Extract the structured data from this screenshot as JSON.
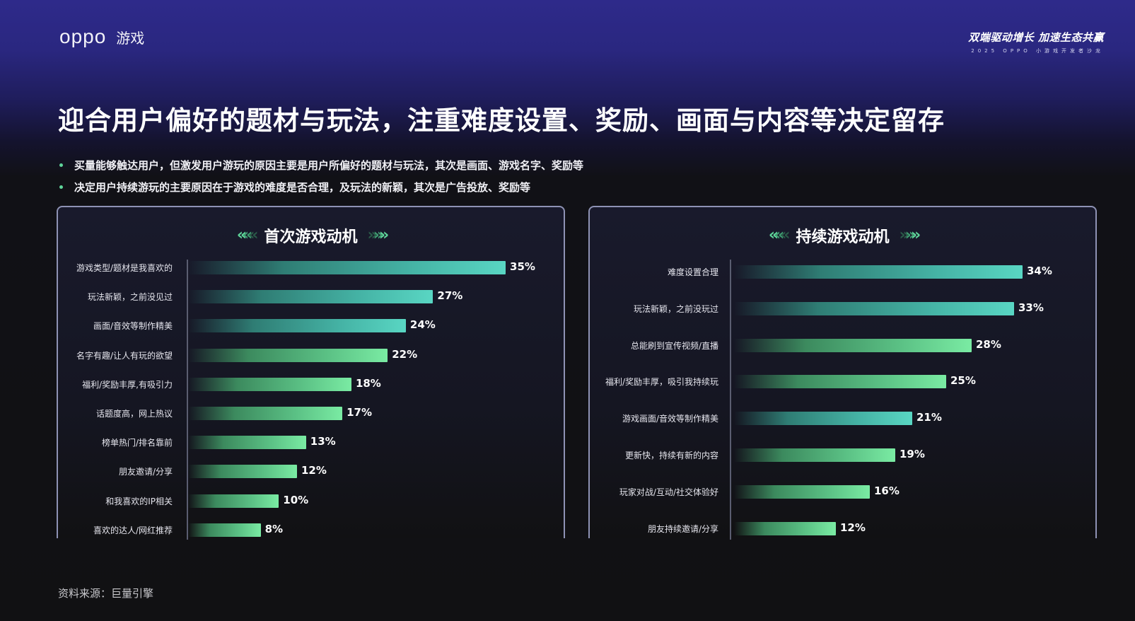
{
  "header": {
    "logo_brand": "oppo",
    "logo_sub": "游戏",
    "event_title": "双端驱动增长 加速生态共赢",
    "event_subtitle": "2025 OPPO 小游戏开发者沙龙"
  },
  "headline": "迎合用户偏好的题材与玩法，注重难度设置、奖励、画面与内容等决定留存",
  "bullets": [
    "买量能够触达用户，但激发用户游玩的原因主要是用户所偏好的题材与玩法，其次是画面、游戏名字、奖励等",
    "决定用户持续游玩的主要原因在于游戏的难度是否合理，及玩法的新颖，其次是广告投放、奖励等"
  ],
  "icons": {
    "chevrons_left": "«««",
    "chevrons_right": "»»»"
  },
  "colors": {
    "teal": "#59d6c3",
    "green": "#7aeba3",
    "bullet": "#5fd59a",
    "panel_border": "#8e92b4"
  },
  "panels": {
    "left": {
      "title": "首次游戏动机",
      "rows": [
        {
          "label": "游戏类型/题材是我喜欢的",
          "value": 35,
          "display": "35%",
          "color": "teal"
        },
        {
          "label": "玩法新颖，之前没见过",
          "value": 27,
          "display": "27%",
          "color": "teal"
        },
        {
          "label": "画面/音效等制作精美",
          "value": 24,
          "display": "24%",
          "color": "teal"
        },
        {
          "label": "名字有趣/让人有玩的欲望",
          "value": 22,
          "display": "22%",
          "color": "green"
        },
        {
          "label": "福利/奖励丰厚,有吸引力",
          "value": 18,
          "display": "18%",
          "color": "green"
        },
        {
          "label": "话题度高，网上热议",
          "value": 17,
          "display": "17%",
          "color": "green"
        },
        {
          "label": "榜单热门/排名靠前",
          "value": 13,
          "display": "13%",
          "color": "green"
        },
        {
          "label": "朋友邀请/分享",
          "value": 12,
          "display": "12%",
          "color": "green"
        },
        {
          "label": "和我喜欢的IP相关",
          "value": 10,
          "display": "10%",
          "color": "green"
        },
        {
          "label": "喜欢的达人/网红推荐",
          "value": 8,
          "display": "8%",
          "color": "green"
        }
      ]
    },
    "right": {
      "title": "持续游戏动机",
      "rows": [
        {
          "label": "难度设置合理",
          "value": 34,
          "display": "34%",
          "color": "teal"
        },
        {
          "label": "玩法新颖，之前没玩过",
          "value": 33,
          "display": "33%",
          "color": "teal"
        },
        {
          "label": "总能刷到宣传视频/直播",
          "value": 28,
          "display": "28%",
          "color": "green"
        },
        {
          "label": "福利/奖励丰厚，吸引我持续玩",
          "value": 25,
          "display": "25%",
          "color": "green"
        },
        {
          "label": "游戏画面/音效等制作精美",
          "value": 21,
          "display": "21%",
          "color": "teal"
        },
        {
          "label": "更新快，持续有新的内容",
          "value": 19,
          "display": "19%",
          "color": "green"
        },
        {
          "label": "玩家对战/互动/社交体验好",
          "value": 16,
          "display": "16%",
          "color": "green"
        },
        {
          "label": "朋友持续邀请/分享",
          "value": 12,
          "display": "12%",
          "color": "green"
        }
      ]
    }
  },
  "source": "资料来源：巨量引擎",
  "chart_data": [
    {
      "type": "bar",
      "orientation": "horizontal",
      "title": "首次游戏动机",
      "categories": [
        "游戏类型/题材是我喜欢的",
        "玩法新颖，之前没见过",
        "画面/音效等制作精美",
        "名字有趣/让人有玩的欲望",
        "福利/奖励丰厚,有吸引力",
        "话题度高，网上热议",
        "榜单热门/排名靠前",
        "朋友邀请/分享",
        "和我喜欢的IP相关",
        "喜欢的达人/网红推荐"
      ],
      "values": [
        35,
        27,
        24,
        22,
        18,
        17,
        13,
        12,
        10,
        8
      ],
      "unit": "%",
      "xlabel": "",
      "ylabel": "",
      "grid": false,
      "legend": null
    },
    {
      "type": "bar",
      "orientation": "horizontal",
      "title": "持续游戏动机",
      "categories": [
        "难度设置合理",
        "玩法新颖，之前没玩过",
        "总能刷到宣传视频/直播",
        "福利/奖励丰厚，吸引我持续玩",
        "游戏画面/音效等制作精美",
        "更新快，持续有新的内容",
        "玩家对战/互动/社交体验好",
        "朋友持续邀请/分享"
      ],
      "values": [
        34,
        33,
        28,
        25,
        21,
        19,
        16,
        12
      ],
      "unit": "%",
      "xlabel": "",
      "ylabel": "",
      "grid": false,
      "legend": null
    }
  ]
}
